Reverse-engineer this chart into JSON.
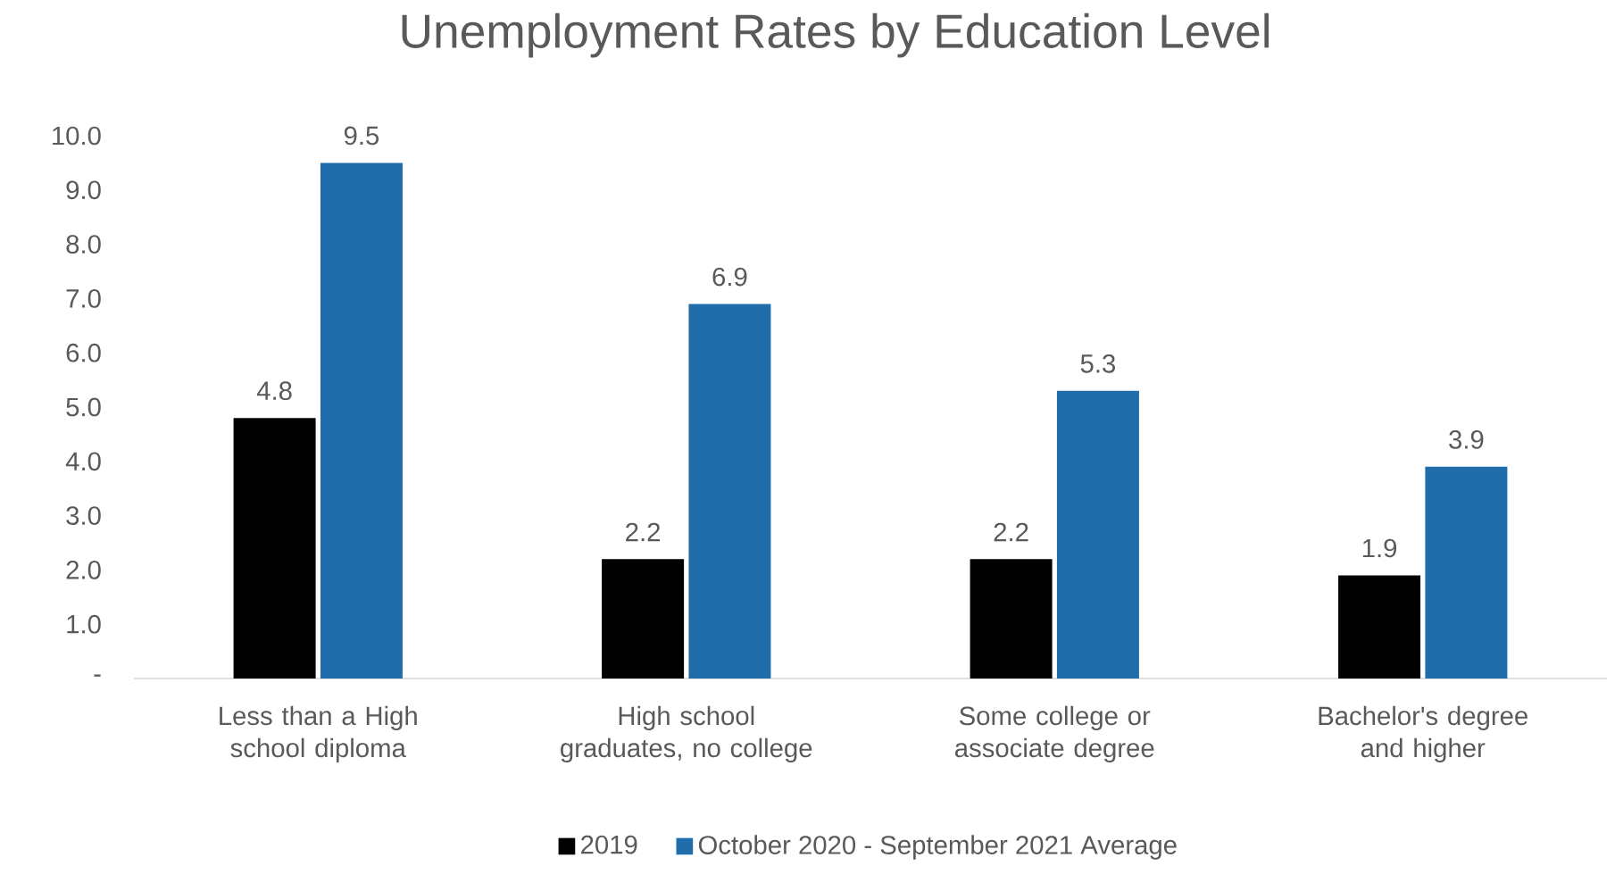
{
  "chart_data": {
    "type": "bar",
    "title": "Unemployment Rates by Education Level",
    "categories": [
      "Less than a High school diploma",
      "High school graduates, no college",
      "Some college or associate degree",
      "Bachelor's degree and higher"
    ],
    "series": [
      {
        "name": "2019",
        "color": "#000000",
        "values": [
          4.8,
          2.2,
          2.2,
          1.9
        ]
      },
      {
        "name": "October 2020 - September 2021 Average",
        "color": "#1f6dab",
        "values": [
          9.5,
          6.9,
          5.3,
          3.9
        ]
      }
    ],
    "ylim": [
      0,
      10
    ],
    "yticks": [
      {
        "value": 0,
        "label": "-"
      },
      {
        "value": 1,
        "label": "1.0"
      },
      {
        "value": 2,
        "label": "2.0"
      },
      {
        "value": 3,
        "label": "3.0"
      },
      {
        "value": 4,
        "label": "4.0"
      },
      {
        "value": 5,
        "label": "5.0"
      },
      {
        "value": 6,
        "label": "6.0"
      },
      {
        "value": 7,
        "label": "7.0"
      },
      {
        "value": 8,
        "label": "8.0"
      },
      {
        "value": 9,
        "label": "9.0"
      },
      {
        "value": 10,
        "label": "10.0"
      }
    ],
    "data_labels": true,
    "legend": "bottom"
  }
}
